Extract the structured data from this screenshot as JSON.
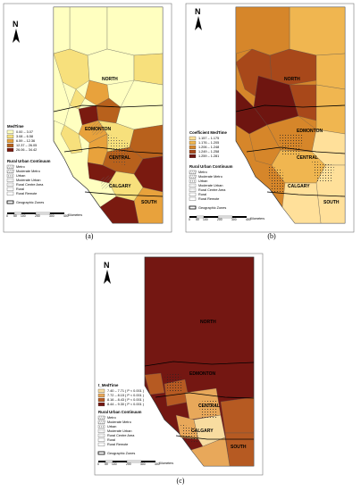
{
  "panels": [
    {
      "id": "a",
      "caption": "(a)",
      "legend_title": "MedTime",
      "classes": [
        {
          "label": "0.00 – 3.07",
          "color": "#ffffc0"
        },
        {
          "label": "3.08 – 6.58",
          "color": "#f7e07c"
        },
        {
          "label": "6.59 – 12.36",
          "color": "#e8a23c"
        },
        {
          "label": "12.37 – 26.05",
          "color": "#b8611c"
        },
        {
          "label": "26.06 – 34.42",
          "color": "#7a1a10"
        }
      ]
    },
    {
      "id": "b",
      "caption": "(b)",
      "legend_title": "Coefficient MedTime",
      "classes": [
        {
          "label": "1.157 – 1.175",
          "color": "#ffe09a"
        },
        {
          "label": "1.176 – 1.205",
          "color": "#f0b650"
        },
        {
          "label": "1.206 – 1.248",
          "color": "#d6862a"
        },
        {
          "label": "1.249 – 1.258",
          "color": "#a8481a"
        },
        {
          "label": "1.259 – 1.281",
          "color": "#6e1510"
        }
      ]
    },
    {
      "id": "c",
      "caption": "(c)",
      "legend_title": "t_MedTime",
      "classes": [
        {
          "label": "7.40 – 7.71 ( P < 0.001 )",
          "color": "#f8dca0"
        },
        {
          "label": "7.72 – 8.15 ( P < 0.001 )",
          "color": "#e8a85a"
        },
        {
          "label": "8.16 – 8.43 ( P < 0.001 )",
          "color": "#b65a22"
        },
        {
          "label": "8.44 – 9.30 ( P < 0.001 )",
          "color": "#741712"
        }
      ]
    }
  ],
  "rural_urban": {
    "title": "Rural Urban Continuum",
    "items": [
      "Metro",
      "Moderate Metro",
      "Urban",
      "Moderate Urban",
      "Rural Centre Area",
      "Rural",
      "Rural Remote"
    ],
    "zones_label": "Geographic Zones"
  },
  "zones": {
    "north": "NORTH",
    "edmonton": "EDMONTON",
    "central": "CENTRAL",
    "calgary": "CALGARY",
    "south": "SOUTH"
  },
  "north_arrow": "N",
  "scale_bar": {
    "ticks": [
      "0",
      "50",
      "100",
      "200",
      "300",
      "400"
    ],
    "unit": "Kilometers"
  }
}
